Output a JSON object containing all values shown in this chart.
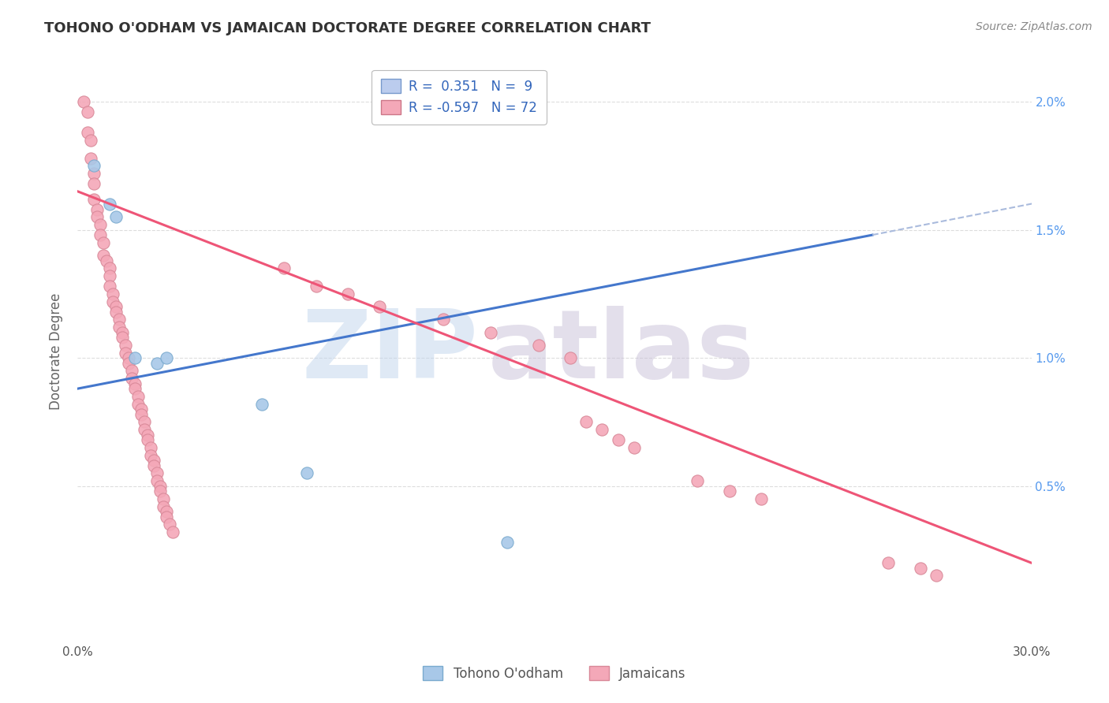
{
  "title": "TOHONO O'ODHAM VS JAMAICAN DOCTORATE DEGREE CORRELATION CHART",
  "source": "Source: ZipAtlas.com",
  "ylabel": "Doctorate Degree",
  "right_yticks": [
    "0.5%",
    "1.0%",
    "1.5%",
    "2.0%"
  ],
  "right_ytick_vals": [
    0.005,
    0.01,
    0.015,
    0.02
  ],
  "xlim": [
    0.0,
    0.3
  ],
  "ylim": [
    -0.001,
    0.0215
  ],
  "tohono_color": "#A8C8E8",
  "tohono_edge": "#7aaace",
  "jamaican_color": "#F4A8B8",
  "jamaican_edge": "#d88898",
  "tohono_scatter": [
    [
      0.005,
      0.0175
    ],
    [
      0.01,
      0.016
    ],
    [
      0.012,
      0.0155
    ],
    [
      0.018,
      0.01
    ],
    [
      0.025,
      0.0098
    ],
    [
      0.028,
      0.01
    ],
    [
      0.058,
      0.0082
    ],
    [
      0.072,
      0.0055
    ],
    [
      0.135,
      0.0028
    ]
  ],
  "jamaican_scatter": [
    [
      0.002,
      0.02
    ],
    [
      0.003,
      0.0196
    ],
    [
      0.003,
      0.0188
    ],
    [
      0.004,
      0.0185
    ],
    [
      0.004,
      0.0178
    ],
    [
      0.005,
      0.0172
    ],
    [
      0.005,
      0.0168
    ],
    [
      0.005,
      0.0162
    ],
    [
      0.006,
      0.0158
    ],
    [
      0.006,
      0.0155
    ],
    [
      0.007,
      0.0152
    ],
    [
      0.007,
      0.0148
    ],
    [
      0.008,
      0.0145
    ],
    [
      0.008,
      0.014
    ],
    [
      0.009,
      0.0138
    ],
    [
      0.01,
      0.0135
    ],
    [
      0.01,
      0.0132
    ],
    [
      0.01,
      0.0128
    ],
    [
      0.011,
      0.0125
    ],
    [
      0.011,
      0.0122
    ],
    [
      0.012,
      0.012
    ],
    [
      0.012,
      0.0118
    ],
    [
      0.013,
      0.0115
    ],
    [
      0.013,
      0.0112
    ],
    [
      0.014,
      0.011
    ],
    [
      0.014,
      0.0108
    ],
    [
      0.015,
      0.0105
    ],
    [
      0.015,
      0.0102
    ],
    [
      0.016,
      0.01
    ],
    [
      0.016,
      0.0098
    ],
    [
      0.017,
      0.0095
    ],
    [
      0.017,
      0.0092
    ],
    [
      0.018,
      0.009
    ],
    [
      0.018,
      0.0088
    ],
    [
      0.019,
      0.0085
    ],
    [
      0.019,
      0.0082
    ],
    [
      0.02,
      0.008
    ],
    [
      0.02,
      0.0078
    ],
    [
      0.021,
      0.0075
    ],
    [
      0.021,
      0.0072
    ],
    [
      0.022,
      0.007
    ],
    [
      0.022,
      0.0068
    ],
    [
      0.023,
      0.0065
    ],
    [
      0.023,
      0.0062
    ],
    [
      0.024,
      0.006
    ],
    [
      0.024,
      0.0058
    ],
    [
      0.025,
      0.0055
    ],
    [
      0.025,
      0.0052
    ],
    [
      0.026,
      0.005
    ],
    [
      0.026,
      0.0048
    ],
    [
      0.027,
      0.0045
    ],
    [
      0.027,
      0.0042
    ],
    [
      0.028,
      0.004
    ],
    [
      0.028,
      0.0038
    ],
    [
      0.029,
      0.0035
    ],
    [
      0.03,
      0.0032
    ],
    [
      0.065,
      0.0135
    ],
    [
      0.075,
      0.0128
    ],
    [
      0.085,
      0.0125
    ],
    [
      0.095,
      0.012
    ],
    [
      0.115,
      0.0115
    ],
    [
      0.13,
      0.011
    ],
    [
      0.145,
      0.0105
    ],
    [
      0.155,
      0.01
    ],
    [
      0.16,
      0.0075
    ],
    [
      0.165,
      0.0072
    ],
    [
      0.17,
      0.0068
    ],
    [
      0.175,
      0.0065
    ],
    [
      0.195,
      0.0052
    ],
    [
      0.205,
      0.0048
    ],
    [
      0.215,
      0.0045
    ],
    [
      0.255,
      0.002
    ],
    [
      0.265,
      0.0018
    ],
    [
      0.27,
      0.0015
    ]
  ],
  "tohono_line": [
    [
      0.0,
      0.0088
    ],
    [
      0.25,
      0.0148
    ]
  ],
  "tohono_line_dashed": [
    [
      0.25,
      0.0148
    ],
    [
      0.32,
      0.0165
    ]
  ],
  "jamaican_line": [
    [
      0.0,
      0.0165
    ],
    [
      0.3,
      0.002
    ]
  ],
  "background_color": "#FFFFFF",
  "grid_color": "#DDDDDD",
  "grid_style": "--"
}
